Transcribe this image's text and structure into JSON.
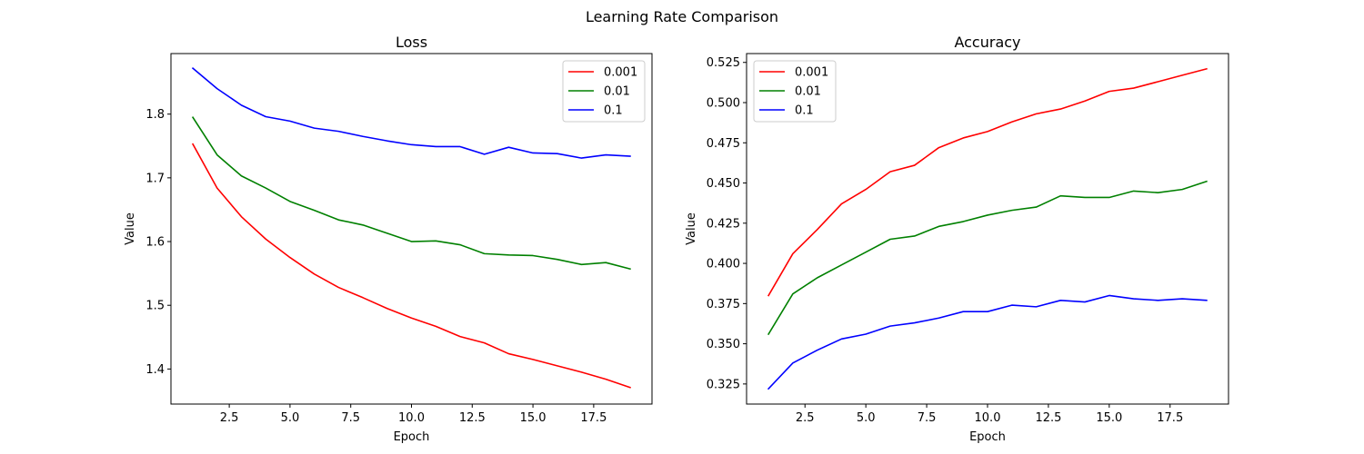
{
  "figure": {
    "suptitle": "Learning Rate Comparison"
  },
  "chart_data": [
    {
      "type": "line",
      "title": "Loss",
      "xlabel": "Epoch",
      "ylabel": "Value",
      "xlim": [
        0.1,
        19.9
      ],
      "ylim": [
        1.345,
        1.895
      ],
      "xticks": [
        2.5,
        5.0,
        7.5,
        10.0,
        12.5,
        15.0,
        17.5
      ],
      "xtick_labels": [
        "2.5",
        "5.0",
        "7.5",
        "10.0",
        "12.5",
        "15.0",
        "17.5"
      ],
      "yticks": [
        1.4,
        1.5,
        1.6,
        1.7,
        1.8
      ],
      "ytick_labels": [
        "1.4",
        "1.5",
        "1.6",
        "1.7",
        "1.8"
      ],
      "legend_position": "top-right",
      "x": [
        1,
        2,
        3,
        4,
        5,
        6,
        7,
        8,
        9,
        10,
        11,
        12,
        13,
        14,
        15,
        16,
        17,
        18,
        19
      ],
      "series": [
        {
          "name": "0.001",
          "color": "#ff0000",
          "values": [
            1.753,
            1.684,
            1.639,
            1.604,
            1.575,
            1.549,
            1.528,
            1.512,
            1.495,
            1.48,
            1.467,
            1.451,
            1.441,
            1.424,
            1.415,
            1.405,
            1.395,
            1.384,
            1.371
          ]
        },
        {
          "name": "0.01",
          "color": "#008000",
          "values": [
            1.795,
            1.736,
            1.703,
            1.684,
            1.663,
            1.649,
            1.634,
            1.626,
            1.613,
            1.6,
            1.601,
            1.595,
            1.581,
            1.579,
            1.578,
            1.572,
            1.564,
            1.567,
            1.557
          ]
        },
        {
          "name": "0.1",
          "color": "#0000ff",
          "values": [
            1.872,
            1.84,
            1.814,
            1.796,
            1.789,
            1.778,
            1.773,
            1.765,
            1.758,
            1.752,
            1.749,
            1.749,
            1.737,
            1.748,
            1.739,
            1.738,
            1.731,
            1.736,
            1.734
          ]
        }
      ]
    },
    {
      "type": "line",
      "title": "Accuracy",
      "xlabel": "Epoch",
      "ylabel": "Value",
      "xlim": [
        0.1,
        19.9
      ],
      "ylim": [
        0.3125,
        0.5305
      ],
      "xticks": [
        2.5,
        5.0,
        7.5,
        10.0,
        12.5,
        15.0,
        17.5
      ],
      "xtick_labels": [
        "2.5",
        "5.0",
        "7.5",
        "10.0",
        "12.5",
        "15.0",
        "17.5"
      ],
      "yticks": [
        0.325,
        0.35,
        0.375,
        0.4,
        0.425,
        0.45,
        0.475,
        0.5,
        0.525
      ],
      "ytick_labels": [
        "0.325",
        "0.350",
        "0.375",
        "0.400",
        "0.425",
        "0.450",
        "0.475",
        "0.500",
        "0.525"
      ],
      "legend_position": "top-left",
      "x": [
        1,
        2,
        3,
        4,
        5,
        6,
        7,
        8,
        9,
        10,
        11,
        12,
        13,
        14,
        15,
        16,
        17,
        18,
        19
      ],
      "series": [
        {
          "name": "0.001",
          "color": "#ff0000",
          "values": [
            0.38,
            0.406,
            0.421,
            0.437,
            0.446,
            0.457,
            0.461,
            0.472,
            0.478,
            0.482,
            0.488,
            0.493,
            0.496,
            0.501,
            0.507,
            0.509,
            0.513,
            0.517,
            0.521
          ]
        },
        {
          "name": "0.01",
          "color": "#008000",
          "values": [
            0.356,
            0.381,
            0.391,
            0.399,
            0.407,
            0.415,
            0.417,
            0.423,
            0.426,
            0.43,
            0.433,
            0.435,
            0.442,
            0.441,
            0.441,
            0.445,
            0.444,
            0.446,
            0.451
          ]
        },
        {
          "name": "0.1",
          "color": "#0000ff",
          "values": [
            0.322,
            0.338,
            0.346,
            0.353,
            0.356,
            0.361,
            0.363,
            0.366,
            0.37,
            0.37,
            0.374,
            0.373,
            0.377,
            0.376,
            0.38,
            0.378,
            0.377,
            0.378,
            0.377
          ]
        }
      ]
    }
  ]
}
